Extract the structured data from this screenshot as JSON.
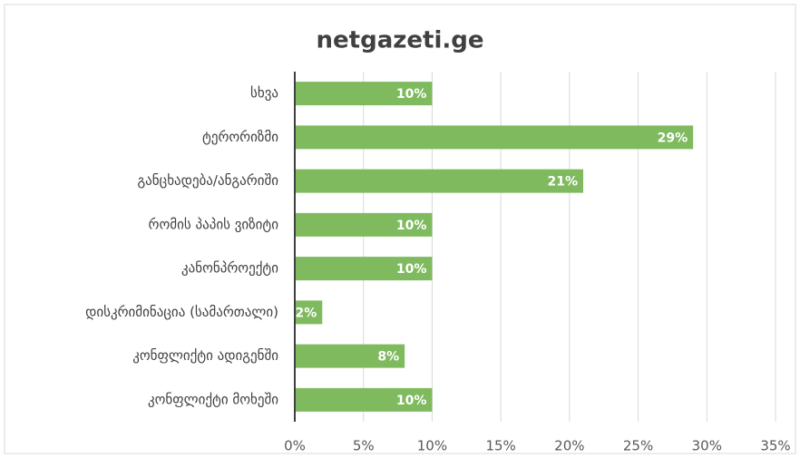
{
  "chart_data": {
    "type": "bar",
    "orientation": "horizontal",
    "title": "netgazeti.ge",
    "categories": [
      "სხვა",
      "ტერორიზმი",
      "განცხადება/ანგარიში",
      "რომის პაპის ვიზიტი",
      "კანონპროექტი",
      "დისკრიმინაცია (სამართალი)",
      "კონფლიქტი ადიგენში",
      "კონფლიქტი მოხეში"
    ],
    "values": [
      10,
      29,
      21,
      10,
      10,
      2,
      8,
      10
    ],
    "value_labels": [
      "10%",
      "29%",
      "21%",
      "10%",
      "10%",
      "2%",
      "8%",
      "10%"
    ],
    "color": "#7fba5f",
    "xlim": [
      0,
      35
    ],
    "xticks": [
      {
        "value": 0,
        "label": "0%"
      },
      {
        "value": 5,
        "label": "5%"
      },
      {
        "value": 10,
        "label": "10%"
      },
      {
        "value": 15,
        "label": "15%"
      },
      {
        "value": 20,
        "label": "20%"
      },
      {
        "value": 25,
        "label": "25%"
      },
      {
        "value": 30,
        "label": "30%"
      },
      {
        "value": 35,
        "label": "35%"
      }
    ],
    "grid": true
  }
}
